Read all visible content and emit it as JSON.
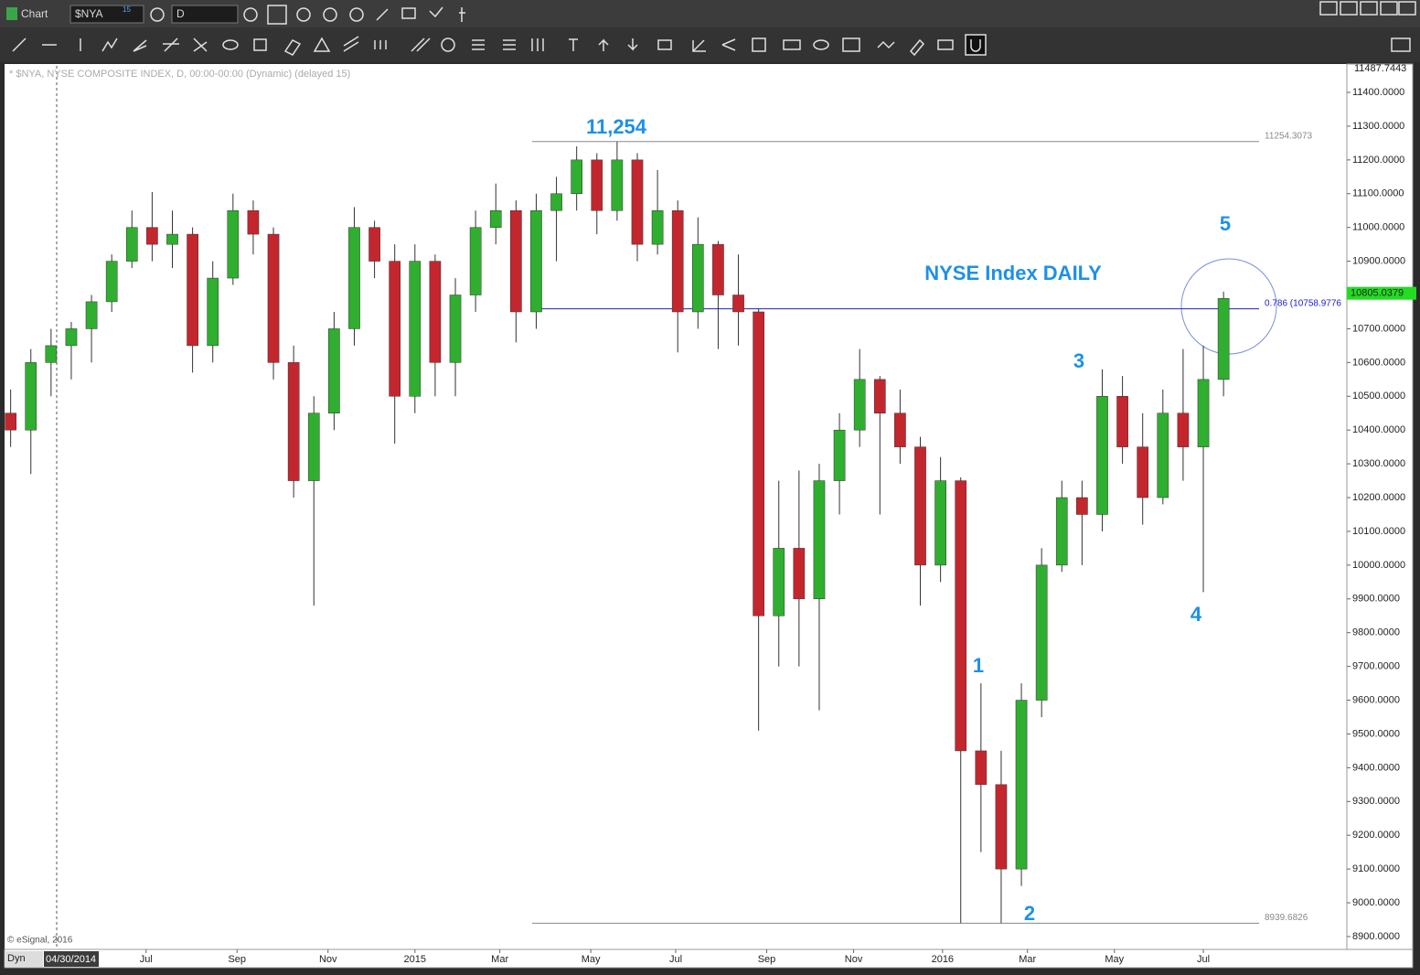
{
  "ui": {
    "window_title": "Chart",
    "symbol": "$NYA",
    "symbol_badge": "15",
    "interval": "D",
    "mode": "Dyn",
    "start_date": "04/30/2014",
    "watermark": "© eSignal, 2016"
  },
  "chart_data": {
    "type": "candlestick",
    "title": "* $NYA, NYSE COMPOSITE INDEX, D, 00:00-00:00 (Dynamic) (delayed 15)",
    "x": [
      0,
      1,
      2,
      3,
      4,
      5,
      6,
      7,
      8,
      9,
      10,
      11,
      12,
      13,
      14,
      15,
      16,
      17,
      18,
      19,
      20,
      21,
      22,
      23,
      24,
      25,
      26,
      27,
      28,
      29,
      30,
      31,
      32,
      33,
      34,
      35,
      36,
      37,
      38,
      39,
      40,
      41,
      42,
      43,
      44,
      45,
      46,
      47,
      48,
      49,
      50,
      51,
      52,
      53,
      54,
      55,
      56,
      57,
      58,
      59,
      60
    ],
    "open": [
      10450,
      10400,
      10600,
      10650,
      10700,
      10780,
      10900,
      11000,
      10950,
      10980,
      10650,
      10850,
      11050,
      10980,
      10600,
      10250,
      10450,
      10700,
      11000,
      10900,
      10500,
      10900,
      10600,
      10800,
      11000,
      11050,
      10750,
      11050,
      11100,
      11200,
      11050,
      11200,
      10950,
      11050,
      10750,
      10950,
      10800,
      10750,
      9850,
      10050,
      9900,
      10250,
      10400,
      10550,
      10450,
      10350,
      10000,
      10250,
      9450,
      9350,
      9100,
      9600,
      10000,
      10200,
      10150,
      10500,
      10350,
      10200,
      10450,
      10350,
      10550
    ],
    "high": [
      10520,
      10640,
      10700,
      10720,
      10800,
      10920,
      11050,
      11105,
      11050,
      11000,
      10900,
      11100,
      11080,
      11000,
      10650,
      10500,
      10750,
      11060,
      11020,
      10950,
      10950,
      10920,
      10850,
      11050,
      11130,
      11080,
      11100,
      11150,
      11240,
      11220,
      11254,
      11220,
      11170,
      11080,
      11030,
      10960,
      10920,
      10760,
      10250,
      10280,
      10300,
      10450,
      10640,
      10560,
      10520,
      10380,
      10320,
      10260,
      9650,
      9450,
      9650,
      10050,
      10250,
      10250,
      10580,
      10560,
      10450,
      10520,
      10640,
      10650,
      10810
    ],
    "low": [
      10350,
      10270,
      10500,
      10550,
      10600,
      10750,
      10880,
      10900,
      10880,
      10570,
      10600,
      10830,
      10920,
      10550,
      10200,
      9880,
      10400,
      10650,
      10850,
      10360,
      10450,
      10500,
      10500,
      10750,
      10950,
      10660,
      10700,
      10900,
      11050,
      10980,
      11020,
      10900,
      10920,
      10630,
      10700,
      10640,
      10650,
      9510,
      9700,
      9700,
      9570,
      10150,
      10350,
      10150,
      10300,
      9880,
      9950,
      8940,
      9150,
      8940,
      9050,
      9550,
      9980,
      10000,
      10100,
      10300,
      10120,
      10180,
      10250,
      9920,
      10500
    ],
    "close": [
      10400,
      10600,
      10650,
      10700,
      10780,
      10900,
      11000,
      10950,
      10980,
      10650,
      10850,
      11050,
      10980,
      10600,
      10250,
      10450,
      10700,
      11000,
      10900,
      10500,
      10900,
      10600,
      10800,
      11000,
      11050,
      10750,
      11050,
      11100,
      11200,
      11050,
      11200,
      10950,
      11050,
      10750,
      10950,
      10800,
      10750,
      9850,
      10050,
      9900,
      10250,
      10400,
      10550,
      10450,
      10350,
      10000,
      10250,
      9450,
      9350,
      9100,
      9600,
      10000,
      10200,
      10150,
      10500,
      10350,
      10200,
      10450,
      10350,
      10550,
      10790
    ],
    "up_color": "#2fae2f",
    "down_color": "#c4262e",
    "xlim": [
      -0.3,
      66.1
    ],
    "xticks": [
      {
        "value": 6.7,
        "label": "Jul"
      },
      {
        "value": 11.2,
        "label": "Sep"
      },
      {
        "value": 15.7,
        "label": "Nov"
      },
      {
        "value": 20.0,
        "label": "2015"
      },
      {
        "value": 24.2,
        "label": "Mar"
      },
      {
        "value": 28.7,
        "label": "May"
      },
      {
        "value": 32.9,
        "label": "Jul"
      },
      {
        "value": 37.4,
        "label": "Sep"
      },
      {
        "value": 41.7,
        "label": "Nov"
      },
      {
        "value": 46.1,
        "label": "2016"
      },
      {
        "value": 50.3,
        "label": "Mar"
      },
      {
        "value": 54.6,
        "label": "May"
      },
      {
        "value": 59.0,
        "label": "Jul"
      }
    ],
    "ylim": [
      8862,
      11484
    ],
    "yticks": [
      {
        "value": 8900,
        "label": "8900.0000"
      },
      {
        "value": 9000,
        "label": "9000.0000"
      },
      {
        "value": 9100,
        "label": "9100.0000"
      },
      {
        "value": 9200,
        "label": "9200.0000"
      },
      {
        "value": 9300,
        "label": "9300.0000"
      },
      {
        "value": 9400,
        "label": "9400.0000"
      },
      {
        "value": 9500,
        "label": "9500.0000"
      },
      {
        "value": 9600,
        "label": "9600.0000"
      },
      {
        "value": 9700,
        "label": "9700.0000"
      },
      {
        "value": 9800,
        "label": "9800.0000"
      },
      {
        "value": 9900,
        "label": "9900.0000"
      },
      {
        "value": 10000,
        "label": "10000.0000"
      },
      {
        "value": 10100,
        "label": "10100.0000"
      },
      {
        "value": 10200,
        "label": "10200.0000"
      },
      {
        "value": 10300,
        "label": "10300.0000"
      },
      {
        "value": 10400,
        "label": "10400.0000"
      },
      {
        "value": 10500,
        "label": "10500.0000"
      },
      {
        "value": 10600,
        "label": "10600.0000"
      },
      {
        "value": 10700,
        "label": "10700.0000"
      },
      {
        "value": 10800,
        "label": "10800.0000"
      },
      {
        "value": 10900,
        "label": "10900.0000"
      },
      {
        "value": 11000,
        "label": "11000.0000"
      },
      {
        "value": 11100,
        "label": "11100.0000"
      },
      {
        "value": 11200,
        "label": "11200.0000"
      },
      {
        "value": 11300,
        "label": "11300.0000"
      },
      {
        "value": 11400,
        "label": "11400.0000"
      }
    ],
    "axis_top_value": {
      "value": 11487.7443,
      "label": "11487.7443"
    },
    "last_price": {
      "value": 10805.0379,
      "label": "10805.0379"
    },
    "levels": [
      {
        "value": 11254.3073,
        "label": "11254.3073",
        "color": "#888888"
      },
      {
        "value": 10758.9776,
        "label": "0.786 (10758.9776",
        "color": "#2020c0"
      },
      {
        "value": 8939.6826,
        "label": "8939.6826",
        "color": "#888888"
      }
    ],
    "annotations": [
      "11,254",
      "NYSE Index DAILY",
      "5",
      "3",
      "4",
      "1",
      "2"
    ],
    "grid": false
  }
}
